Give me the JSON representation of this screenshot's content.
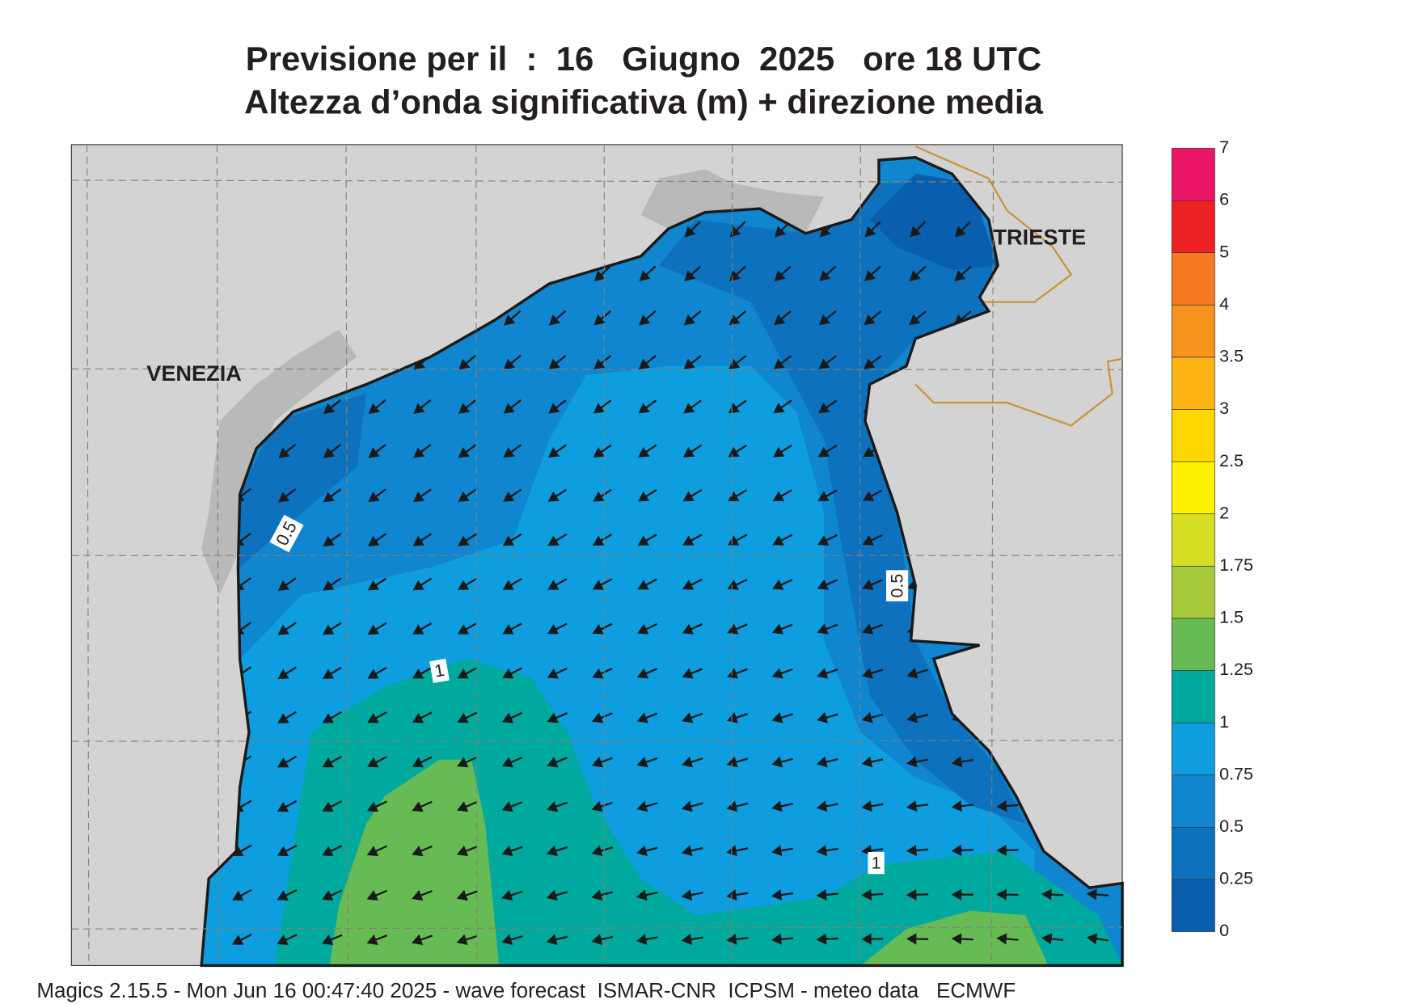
{
  "header": {
    "title": "Previsione per il  :  16   Giugno  2025   ore 18 UTC",
    "subtitle": "Altezza d’onda significativa (m) + direzione media"
  },
  "map": {
    "places": [
      {
        "label": "VENEZIA"
      },
      {
        "label": "TRIESTE"
      }
    ],
    "contour_labels": [
      0.5,
      0.5,
      1,
      1
    ]
  },
  "legend": {
    "levels": [
      0,
      0.25,
      0.5,
      0.75,
      1,
      1.25,
      1.5,
      1.75,
      2,
      2.5,
      3,
      3.5,
      4,
      5,
      6,
      7
    ],
    "colors": [
      "#0a5eae",
      "#0e71bd",
      "#0f86cf",
      "#0e9ddf",
      "#00a99d",
      "#66bb55",
      "#a6ca3a",
      "#d6df23",
      "#fff200",
      "#ffd700",
      "#fdb515",
      "#f7941d",
      "#f47920",
      "#ed2224",
      "#ec1667"
    ]
  },
  "footer": "Magics 2.15.5 - Mon Jun 16 00:47:40 2025 - wave forecast  ISMAR-CNR  ICPSM - meteo data   ECMWF"
}
